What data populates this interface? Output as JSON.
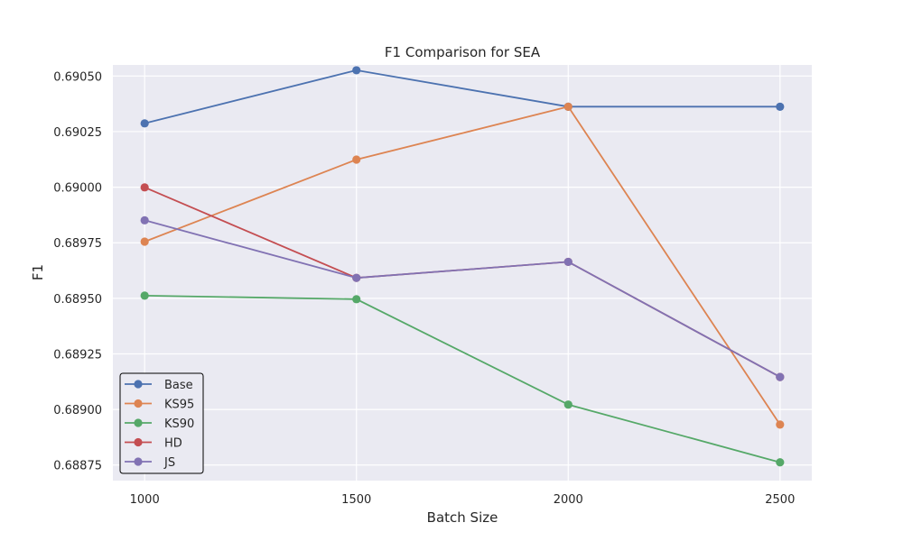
{
  "chart_data": {
    "type": "line",
    "title": "F1 Comparison for SEA",
    "xlabel": "Batch Size",
    "ylabel": "F1",
    "x": [
      1000,
      1500,
      2000,
      2500
    ],
    "x_tick_labels": [
      "1000",
      "1500",
      "2000",
      "2500"
    ],
    "y_ticks": [
      0.68875,
      0.689,
      0.68925,
      0.6895,
      0.68975,
      0.69,
      0.69025,
      0.6905
    ],
    "y_tick_labels": [
      "0.68875",
      "0.68900",
      "0.68925",
      "0.68950",
      "0.68975",
      "0.69000",
      "0.69025",
      "0.69050"
    ],
    "xlim": [
      925,
      2575
    ],
    "ylim": [
      0.68868,
      0.69055
    ],
    "grid": true,
    "legend_position": "lower-left",
    "series": [
      {
        "name": "Base",
        "color": "#4c72b0",
        "values": [
          0.690287,
          0.690526,
          0.690362,
          0.690362
        ]
      },
      {
        "name": "KS95",
        "color": "#dd8452",
        "values": [
          0.689755,
          0.690124,
          0.690362,
          0.688932
        ]
      },
      {
        "name": "KS90",
        "color": "#55a868",
        "values": [
          0.689512,
          0.689496,
          0.689022,
          0.688762
        ]
      },
      {
        "name": "HD",
        "color": "#c44e52",
        "values": [
          0.689999,
          0.689592,
          0.689664,
          0.689146
        ]
      },
      {
        "name": "JS",
        "color": "#8172b3",
        "values": [
          0.689851,
          0.689592,
          0.689664,
          0.689146
        ]
      }
    ]
  }
}
